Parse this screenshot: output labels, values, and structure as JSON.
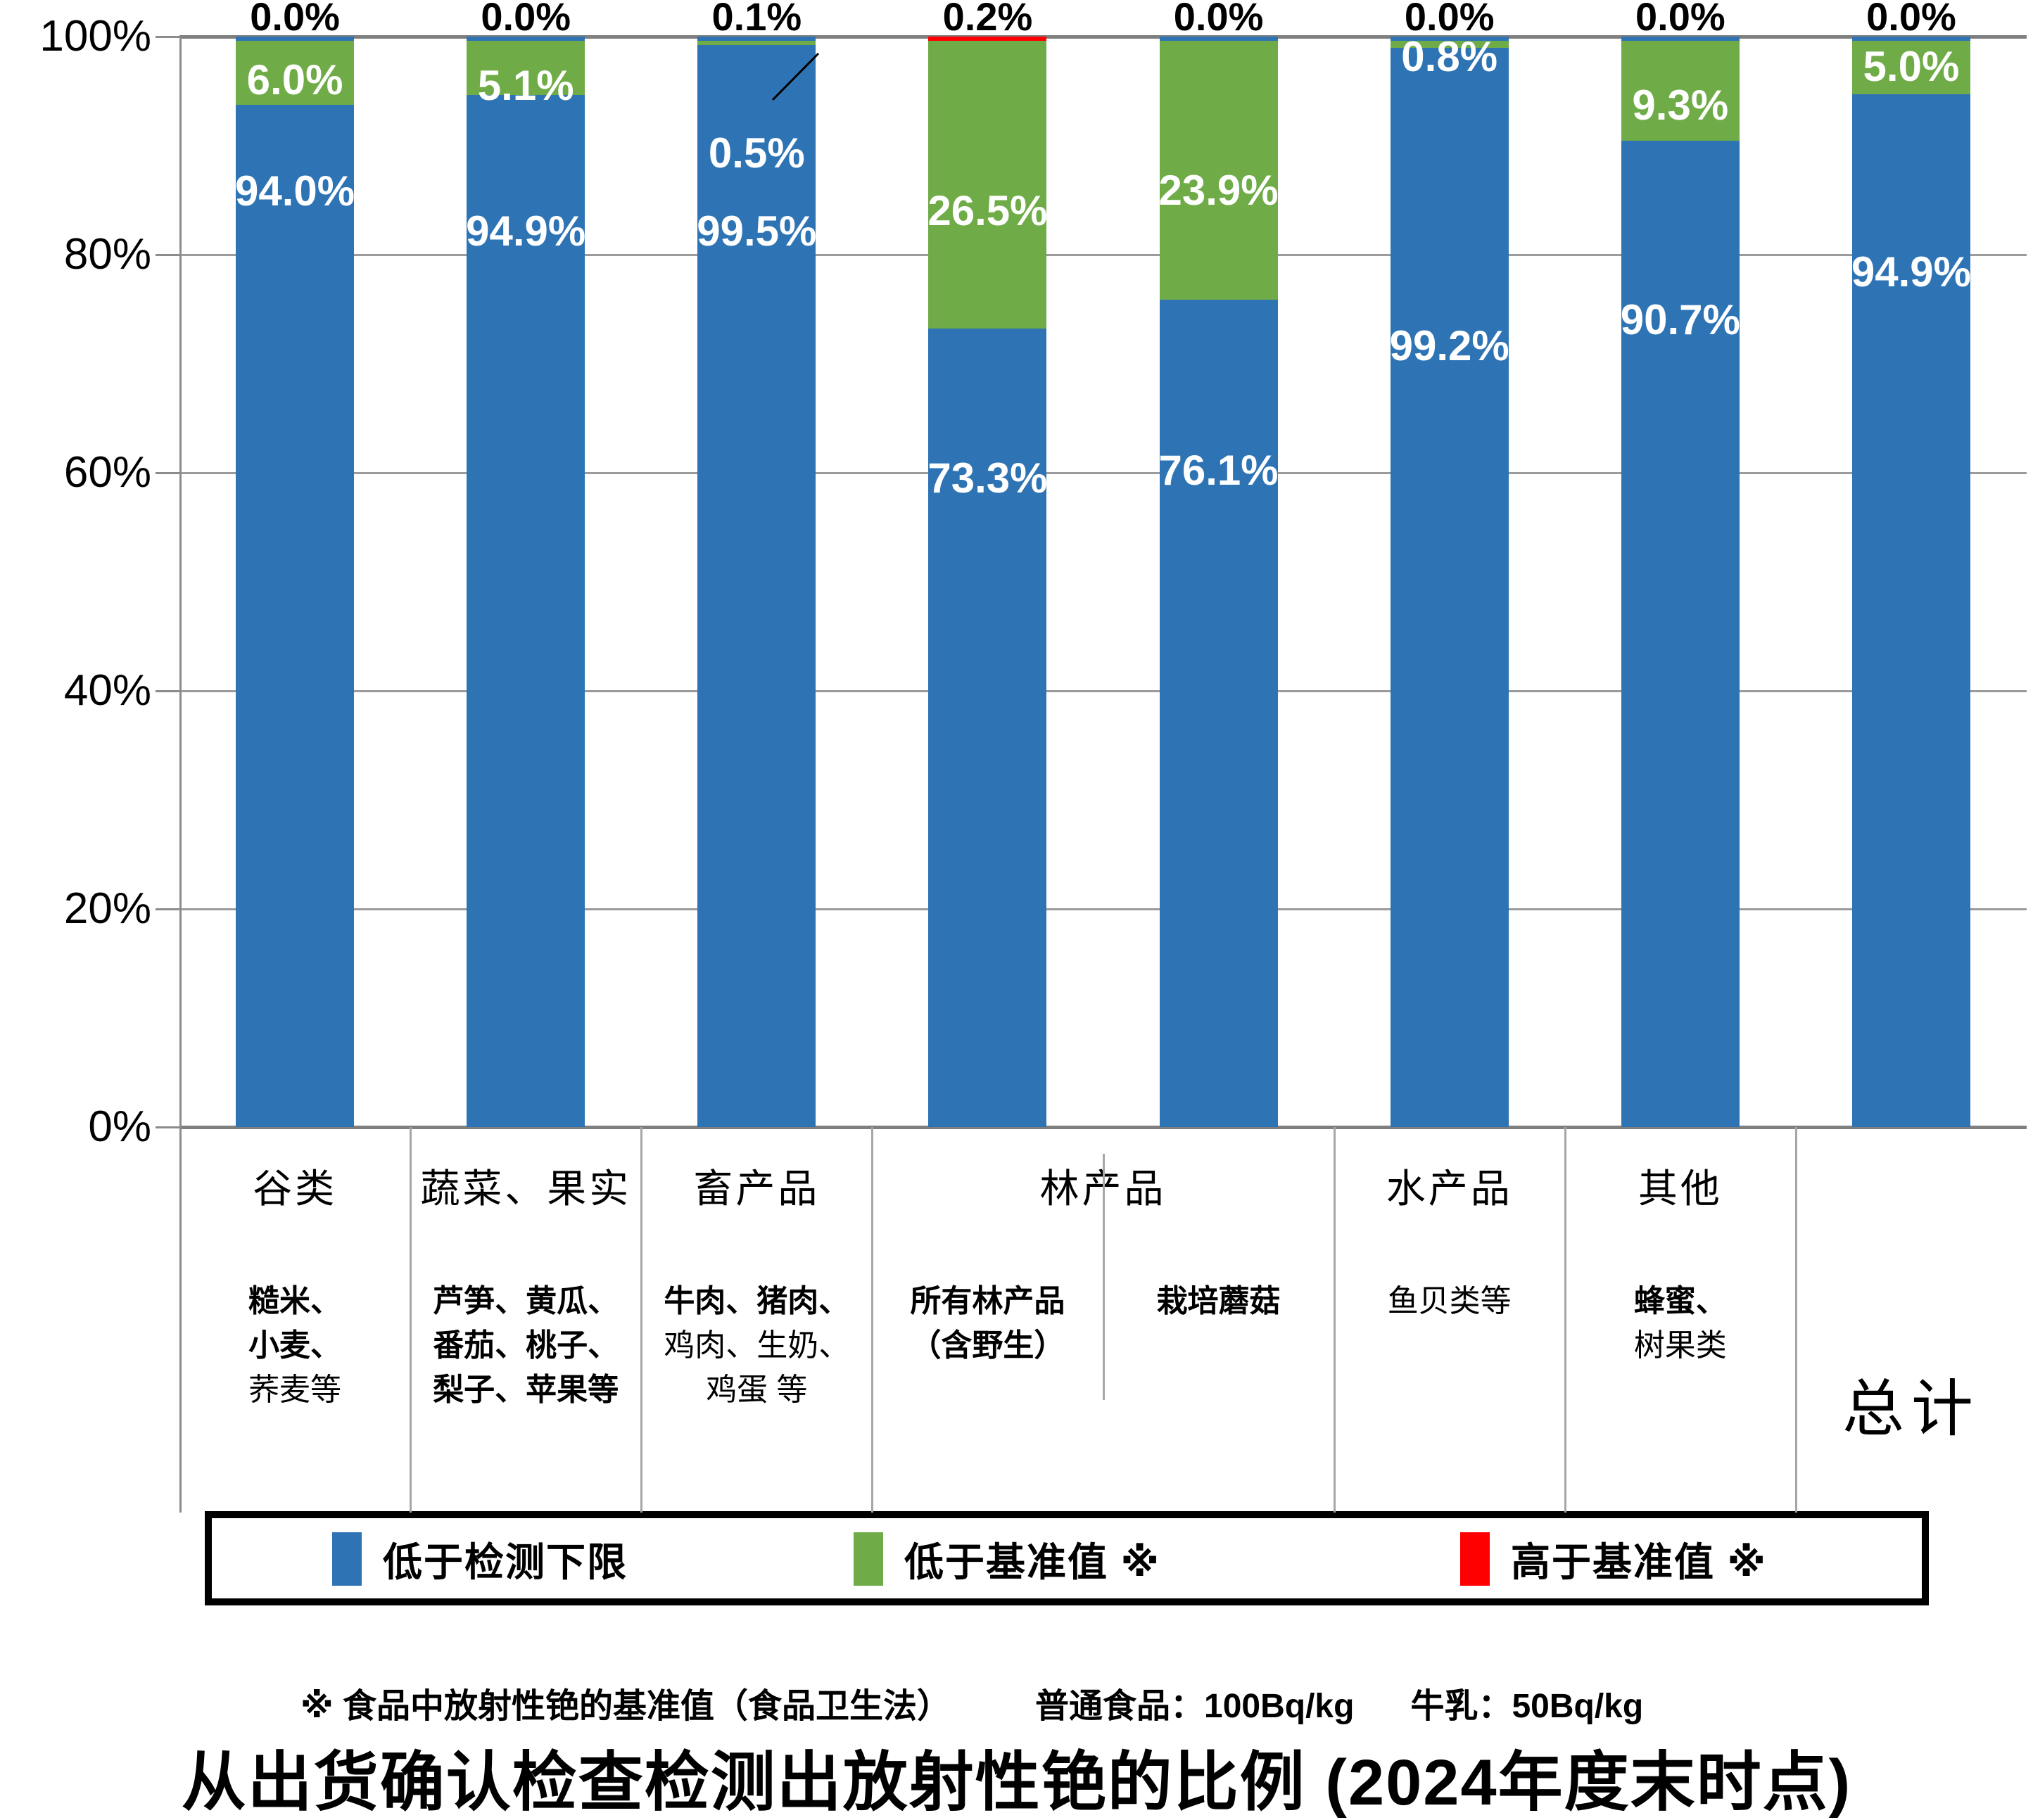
{
  "page_title": "从出货确认检查检测出放射性铯的比例 (2024年度末时点)",
  "footnote": {
    "note": "※ 食品中放射性铯的基准值（食品卫生法）",
    "general_food": "普通食品：100Bq/kg",
    "milk": "牛乳：50Bq/kg"
  },
  "legend": {
    "items": [
      {
        "label": "低于检测下限",
        "color": "#2E74B5"
      },
      {
        "label": "低于基准值 ※",
        "color": "#6FAC47"
      },
      {
        "label": "高于基准值 ※",
        "color": "#FF0000"
      }
    ]
  },
  "colors": {
    "blue": "#2E74B5",
    "green": "#6FAC47",
    "red": "#FF0000",
    "grid": "#9B9B9B",
    "axis": "#7F7F7F"
  },
  "y_axis": {
    "tick_labels": [
      "100%",
      "80%",
      "60%",
      "40%",
      "20%",
      "0%"
    ],
    "min": 0,
    "max": 100
  },
  "chart_data": {
    "type": "bar",
    "stacked": true,
    "ylim": [
      0,
      100
    ],
    "grid": "horizontal gridlines every 20%",
    "legend_position": "bottom",
    "categories": [
      "谷类",
      "蔬菜、果实",
      "畜产品",
      "所有林产品（含野生）",
      "栽培蘑菇",
      "水产品",
      "其他",
      "总计"
    ],
    "series": [
      {
        "name": "低于检测下限",
        "color": "#2E74B5",
        "values": [
          94.0,
          94.9,
          99.5,
          73.3,
          76.1,
          99.2,
          90.7,
          94.9
        ]
      },
      {
        "name": "低于基准值 ※",
        "color": "#6FAC47",
        "values": [
          6.0,
          5.1,
          0.5,
          26.5,
          23.9,
          0.8,
          9.3,
          5.0
        ]
      },
      {
        "name": "高于基准值 ※",
        "color": "#FF0000",
        "values": [
          0.0,
          0.0,
          0.1,
          0.2,
          0.0,
          0.0,
          0.0,
          0.0
        ]
      }
    ],
    "bar_labels": [
      {
        "top": "0.0%",
        "green": "6.0%",
        "blue": "94.0%"
      },
      {
        "top": "0.0%",
        "green": "5.1%",
        "blue": "94.9%"
      },
      {
        "top": "0.1%",
        "green": "0.5%",
        "blue": "99.5%"
      },
      {
        "top": "0.2%",
        "green": "26.5%",
        "blue": "73.3%"
      },
      {
        "top": "0.0%",
        "green": "23.9%",
        "blue": "76.1%"
      },
      {
        "top": "0.0%",
        "green": "0.8%",
        "blue": "99.2%"
      },
      {
        "top": "0.0%",
        "green": "9.3%",
        "blue": "90.7%"
      },
      {
        "top": "0.0%",
        "green": "5.0%",
        "blue": "94.9%"
      }
    ],
    "label_layout_hints": {
      "blue_label_frac_from_top": [
        0.142,
        0.179,
        0.179,
        0.405,
        0.398,
        0.284,
        0.26,
        0.216
      ],
      "green_label_frac_from_top": [
        0.04,
        0.045,
        0.107,
        0.16,
        0.141,
        0.019,
        0.063,
        0.028
      ],
      "callout": {
        "bar_index": 2,
        "label": "0.5%"
      }
    }
  },
  "category_table": {
    "groups": [
      {
        "title": "谷类",
        "span": 1,
        "big": false,
        "columns": [
          {
            "lines": [
              {
                "t": "糙米、",
                "b": true
              },
              {
                "t": "小麦、",
                "b": true
              },
              {
                "t": "荞麦等",
                "b": false
              }
            ]
          }
        ]
      },
      {
        "title": "蔬菜、果实",
        "span": 1,
        "big": false,
        "columns": [
          {
            "lines": [
              {
                "t": "芦笋、黄瓜、",
                "b": true
              },
              {
                "t": "番茄、桃子、",
                "b": true
              },
              {
                "t": "梨子、苹果等",
                "b": true
              }
            ]
          }
        ]
      },
      {
        "title": "畜产品",
        "span": 1,
        "big": false,
        "columns": [
          {
            "lines": [
              {
                "t": "牛肉、猪肉、",
                "b": true
              },
              {
                "t": "鸡肉、生奶、",
                "b": false
              },
              {
                "t": "鸡蛋 等",
                "b": false
              }
            ]
          }
        ]
      },
      {
        "title": "林产品",
        "span": 2,
        "big": false,
        "columns": [
          {
            "lines": [
              {
                "t": "所有林产品",
                "b": true
              },
              {
                "t": "（含野生）",
                "b": true
              }
            ]
          },
          {
            "lines": [
              {
                "t": "栽培蘑菇",
                "b": true
              }
            ]
          }
        ]
      },
      {
        "title": "水产品",
        "span": 1,
        "big": false,
        "columns": [
          {
            "lines": [
              {
                "t": "鱼贝类等",
                "b": false
              }
            ]
          }
        ]
      },
      {
        "title": "其他",
        "span": 1,
        "big": false,
        "columns": [
          {
            "lines": [
              {
                "t": "蜂蜜、",
                "b": true
              },
              {
                "t": "树果类",
                "b": false
              }
            ]
          }
        ]
      },
      {
        "title": "总计",
        "span": 1,
        "big": true,
        "columns": []
      }
    ]
  }
}
